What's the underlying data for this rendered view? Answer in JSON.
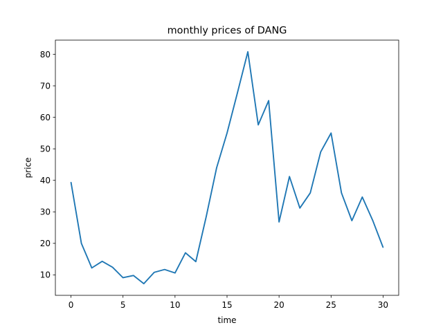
{
  "chart_data": {
    "type": "line",
    "title": "monthly prices of DANG",
    "xlabel": "time",
    "ylabel": "price",
    "xlim": [
      -1.5,
      31.5
    ],
    "ylim": [
      3.5,
      84.5
    ],
    "xticks": [
      0,
      5,
      10,
      15,
      20,
      25,
      30
    ],
    "yticks": [
      10,
      20,
      30,
      40,
      50,
      60,
      70,
      80
    ],
    "grid": false,
    "series": [
      {
        "color": "#1f77b4",
        "x": [
          0,
          1,
          2,
          3,
          4,
          5,
          6,
          7,
          8,
          9,
          10,
          11,
          12,
          13,
          14,
          15,
          16,
          17,
          18,
          19,
          20,
          21,
          22,
          23,
          24,
          25,
          26,
          27,
          28,
          29,
          30
        ],
        "y": [
          39.4,
          20.0,
          12.2,
          14.3,
          12.4,
          9.1,
          9.8,
          7.2,
          10.8,
          11.7,
          10.6,
          17.0,
          14.2,
          28.5,
          44.0,
          55.0,
          67.8,
          80.8,
          57.6,
          65.3,
          26.8,
          41.2,
          31.2,
          36.0,
          49.0,
          55.0,
          36.0,
          27.2,
          34.7,
          27.3,
          18.7
        ]
      }
    ]
  }
}
